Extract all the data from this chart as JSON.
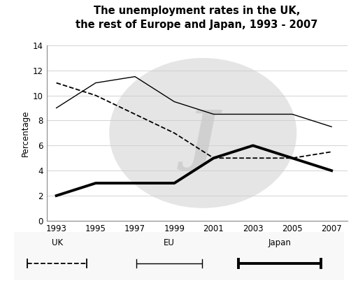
{
  "title": "The unemployment rates in the UK,\nthe rest of Europe and Japan, 1993 - 2007",
  "years": [
    1993,
    1995,
    1997,
    1999,
    2001,
    2003,
    2005,
    2007
  ],
  "uk": [
    11.0,
    10.0,
    8.5,
    7.0,
    5.0,
    5.0,
    5.0,
    5.5
  ],
  "eu": [
    9.0,
    11.0,
    11.5,
    9.5,
    8.5,
    8.5,
    8.5,
    7.5
  ],
  "japan": [
    2.0,
    3.0,
    3.0,
    3.0,
    5.0,
    6.0,
    5.0,
    4.0
  ],
  "ylabel": "Percentage",
  "ylim": [
    0,
    14
  ],
  "yticks": [
    0,
    2,
    4,
    6,
    8,
    10,
    12,
    14
  ],
  "bg_color": "#ffffff"
}
